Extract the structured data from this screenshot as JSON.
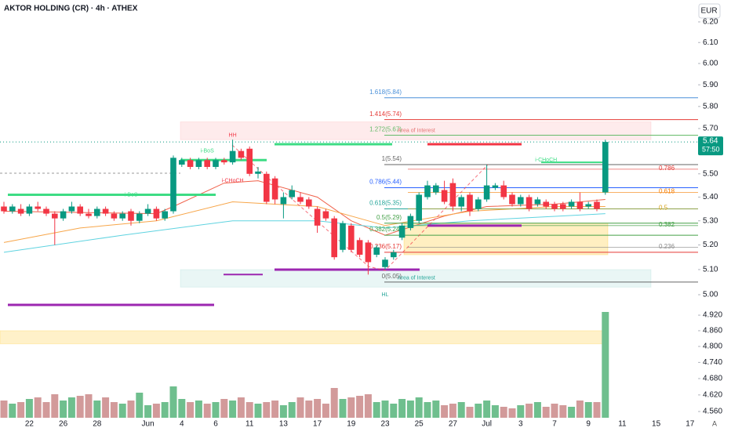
{
  "chart_data": {
    "type": "candlestick",
    "title": "AKTOR HOLDING (CR) · 4h · ATHEX",
    "currency": "EUR",
    "log_scale": true,
    "ylim": [
      4.518,
      6.308
    ],
    "yticks": [
      {
        "value": 6.2,
        "label": "6.20"
      },
      {
        "value": 6.1,
        "label": "6.10"
      },
      {
        "value": 6.0,
        "label": "6.00"
      },
      {
        "value": 5.9,
        "label": "5.90"
      },
      {
        "value": 5.8,
        "label": "5.80"
      },
      {
        "value": 5.7,
        "label": "5.70"
      },
      {
        "value": 5.5,
        "label": "5.50"
      },
      {
        "value": 5.4,
        "label": "5.40"
      },
      {
        "value": 5.3,
        "label": "5.30"
      },
      {
        "value": 5.2,
        "label": "5.20"
      },
      {
        "value": 5.1,
        "label": "5.10"
      },
      {
        "value": 5.0,
        "label": "5.00"
      },
      {
        "value": 4.92,
        "label": "4.920"
      },
      {
        "value": 4.86,
        "label": "4.860"
      },
      {
        "value": 4.8,
        "label": "4.800"
      },
      {
        "value": 4.74,
        "label": "4.740"
      },
      {
        "value": 4.68,
        "label": "4.680"
      },
      {
        "value": 4.62,
        "label": "4.620"
      },
      {
        "value": 4.56,
        "label": "4.560"
      }
    ],
    "last_price": {
      "value": 5.64,
      "label": "5.64"
    },
    "countdown": "57:50",
    "auto_scale_label": "A",
    "categories": [
      null,
      null,
      null,
      "22",
      null,
      null,
      null,
      "26",
      null,
      null,
      null,
      "28",
      null,
      null,
      null,
      null,
      null,
      "Jun",
      null,
      null,
      null,
      "4",
      null,
      null,
      null,
      "6",
      null,
      null,
      null,
      "11",
      null,
      null,
      null,
      "13",
      null,
      null,
      null,
      "17",
      null,
      null,
      null,
      "19",
      null,
      null,
      null,
      "23",
      null,
      null,
      null,
      "25",
      null,
      null,
      null,
      "27",
      null,
      null,
      null,
      "Jul",
      null,
      null,
      null,
      "3",
      null,
      null,
      null,
      "7",
      null,
      null,
      null,
      "9",
      null,
      null
    ],
    "future_categories": [
      "11",
      "15",
      "17"
    ],
    "up_color": "#089981",
    "down_color": "#f23645",
    "open": [
      5.36,
      5.34,
      5.35,
      5.33,
      5.36,
      5.35,
      5.33,
      5.31,
      5.34,
      5.36,
      5.33,
      5.32,
      5.35,
      5.33,
      5.31,
      5.34,
      5.3,
      5.33,
      5.35,
      5.31,
      5.34,
      5.54,
      5.56,
      5.53,
      5.56,
      5.53,
      5.56,
      5.55,
      5.6,
      5.61,
      5.5,
      5.5,
      5.48,
      5.37,
      5.4,
      5.4,
      5.39,
      5.35,
      5.34,
      5.31,
      5.18,
      5.28,
      5.22,
      5.21,
      5.16,
      5.11,
      5.15,
      5.23,
      5.27,
      5.3,
      5.4,
      5.42,
      5.43,
      5.46,
      5.36,
      5.41,
      5.35,
      5.39,
      5.44,
      5.45,
      5.41,
      5.37,
      5.4,
      5.37,
      5.38,
      5.37,
      5.37,
      5.36,
      5.38,
      5.36,
      5.38,
      5.42
    ],
    "high": [
      5.38,
      5.37,
      5.37,
      5.37,
      5.38,
      5.36,
      5.34,
      5.35,
      5.38,
      5.37,
      5.35,
      5.36,
      5.36,
      5.34,
      5.34,
      5.35,
      5.34,
      5.37,
      5.36,
      5.35,
      5.58,
      5.57,
      5.57,
      5.57,
      5.57,
      5.57,
      5.57,
      5.65,
      5.61,
      5.62,
      5.53,
      5.51,
      5.49,
      5.42,
      5.45,
      5.42,
      5.4,
      5.36,
      5.35,
      5.32,
      5.3,
      5.29,
      5.23,
      5.22,
      5.2,
      5.15,
      5.18,
      5.29,
      5.33,
      5.42,
      5.47,
      5.46,
      5.47,
      5.48,
      5.41,
      5.42,
      5.4,
      5.54,
      5.46,
      5.47,
      5.42,
      5.41,
      5.41,
      5.4,
      5.39,
      5.38,
      5.38,
      5.39,
      5.42,
      5.38,
      5.39,
      5.65
    ],
    "low": [
      5.33,
      5.33,
      5.32,
      5.32,
      5.34,
      5.32,
      5.2,
      5.3,
      5.33,
      5.32,
      5.31,
      5.31,
      5.32,
      5.3,
      5.3,
      5.28,
      5.29,
      5.32,
      5.3,
      5.3,
      5.33,
      5.53,
      5.52,
      5.52,
      5.52,
      5.52,
      5.54,
      5.54,
      5.56,
      5.49,
      5.48,
      5.37,
      5.37,
      5.31,
      5.39,
      5.37,
      5.35,
      5.25,
      5.3,
      5.14,
      5.17,
      5.17,
      5.15,
      5.08,
      5.15,
      5.1,
      5.14,
      5.22,
      5.26,
      5.29,
      5.39,
      5.41,
      5.37,
      5.34,
      5.34,
      5.32,
      5.34,
      5.38,
      5.43,
      5.39,
      5.36,
      5.36,
      5.34,
      5.36,
      5.35,
      5.34,
      5.34,
      5.35,
      5.34,
      5.35,
      5.34,
      5.41
    ],
    "close": [
      5.34,
      5.36,
      5.33,
      5.36,
      5.35,
      5.33,
      5.31,
      5.34,
      5.36,
      5.33,
      5.32,
      5.35,
      5.33,
      5.31,
      5.33,
      5.3,
      5.33,
      5.35,
      5.31,
      5.34,
      5.57,
      5.56,
      5.53,
      5.56,
      5.53,
      5.56,
      5.55,
      5.6,
      5.57,
      5.5,
      5.51,
      5.38,
      5.39,
      5.4,
      5.43,
      5.38,
      5.36,
      5.28,
      5.31,
      5.15,
      5.29,
      5.18,
      5.16,
      5.13,
      5.19,
      5.14,
      5.17,
      5.28,
      5.32,
      5.41,
      5.45,
      5.45,
      5.38,
      5.36,
      5.4,
      5.34,
      5.39,
      5.45,
      5.45,
      5.4,
      5.37,
      5.4,
      5.35,
      5.39,
      5.36,
      5.35,
      5.35,
      5.38,
      5.35,
      5.37,
      5.35,
      5.64
    ],
    "volume": [
      22,
      18,
      20,
      24,
      26,
      20,
      30,
      22,
      26,
      28,
      30,
      22,
      26,
      20,
      18,
      22,
      32,
      16,
      18,
      20,
      40,
      24,
      20,
      22,
      18,
      20,
      24,
      22,
      26,
      20,
      18,
      20,
      22,
      16,
      20,
      26,
      22,
      24,
      18,
      38,
      24,
      26,
      28,
      30,
      20,
      22,
      18,
      24,
      22,
      26,
      20,
      22,
      16,
      18,
      20,
      14,
      18,
      22,
      16,
      14,
      12,
      16,
      18,
      20,
      14,
      18,
      16,
      14,
      22,
      20,
      20,
      135
    ],
    "volume_lim": [
      0,
      150
    ],
    "moving_averages": [
      {
        "color": "#f0614a",
        "x": [
          0,
          18,
          20,
          26,
          30,
          37,
          41,
          45,
          52,
          57,
          65,
          71
        ],
        "values": [
          5.34,
          5.33,
          5.36,
          5.46,
          5.47,
          5.4,
          5.3,
          5.24,
          5.32,
          5.36,
          5.37,
          5.39
        ]
      },
      {
        "color": "#f7a64a",
        "x": [
          0,
          9,
          18,
          27,
          37,
          45,
          55,
          65,
          71
        ],
        "values": [
          5.21,
          5.27,
          5.3,
          5.38,
          5.36,
          5.28,
          5.34,
          5.36,
          5.36
        ]
      },
      {
        "color": "#5fd3e0",
        "x": [
          0,
          14,
          27,
          37,
          45,
          55,
          71
        ],
        "values": [
          5.17,
          5.24,
          5.3,
          5.3,
          5.27,
          5.3,
          5.33
        ]
      }
    ],
    "zones": [
      {
        "top": 5.73,
        "bottom": 5.65,
        "color": "rgba(242,54,69,0.10)",
        "label": "Area of Interest",
        "label_color": "#e57373"
      },
      {
        "top": 5.1,
        "bottom": 5.03,
        "color": "rgba(38,166,154,0.10)",
        "label": "Area of Interest",
        "label_color": "#26a69a"
      },
      {
        "top": 5.29,
        "bottom": 5.16,
        "color": "rgba(255,193,7,0.25)"
      },
      {
        "top": 4.86,
        "bottom": 4.81,
        "color": "rgba(255,193,7,0.22)"
      }
    ],
    "levels": [
      {
        "price": 5.41,
        "color": "#3ddc84"
      },
      {
        "price": 5.56,
        "color": "#3ddc84"
      },
      {
        "price": 5.63,
        "color": "#3ddc84"
      },
      {
        "price": 5.63,
        "color": "#f23645"
      },
      {
        "price": 5.55,
        "color": "#3ddc84"
      },
      {
        "price": 5.1,
        "color": "#9c27b0"
      },
      {
        "price": 5.08,
        "color": "#9c27b0"
      },
      {
        "price": 4.96,
        "color": "#9c27b0"
      },
      {
        "price": 5.28,
        "color": "#9c27b0"
      }
    ],
    "fib_levels": [
      {
        "label": "1.618(5.84)",
        "value": 5.84,
        "color": "#4a90d9"
      },
      {
        "label": "1.414(5.74)",
        "value": 5.74,
        "color": "#e53935"
      },
      {
        "label": "1.272(5.67)",
        "value": 5.67,
        "color": "#66bb6a"
      },
      {
        "label": "1(5.54)",
        "value": 5.54,
        "color": "#666666"
      },
      {
        "label": "0.786(5.44)",
        "value": 5.44,
        "color": "#2962ff"
      },
      {
        "label": "0.618(5.35)",
        "value": 5.35,
        "color": "#26a69a"
      },
      {
        "label": "0.5(5.29)",
        "value": 5.29,
        "color": "#43a047"
      },
      {
        "label": "0.382(5.24)",
        "value": 5.24,
        "color": "#43a047"
      },
      {
        "label": "0.236(5.17)",
        "value": 5.17,
        "color": "#e53935"
      },
      {
        "label": "0(5.05)",
        "value": 5.05,
        "color": "#666666"
      }
    ],
    "fib_levels_2": [
      {
        "label": "0.786",
        "value": 5.52,
        "color": "#e53935"
      },
      {
        "label": "0.618",
        "value": 5.42,
        "color": "#f57c00"
      },
      {
        "label": "0.5",
        "value": 5.35,
        "color": "#d4a017"
      },
      {
        "label": "0.382",
        "value": 5.28,
        "color": "#43a047"
      },
      {
        "label": "0.236",
        "value": 5.19,
        "color": "#888888"
      }
    ],
    "structure_labels": [
      {
        "text": "HH",
        "index": 27,
        "price": 5.67,
        "color": "#f23645"
      },
      {
        "text": "HL",
        "index": 45,
        "price": 5.0,
        "color": "#26a69a"
      },
      {
        "text": "i-BoS",
        "index": 24,
        "price": 5.6,
        "color": "#3ddc84"
      },
      {
        "text": "i-CHoCH",
        "index": 27,
        "price": 5.47,
        "color": "#f23645"
      },
      {
        "text": "i-BoS",
        "index": 15,
        "price": 5.41,
        "color": "#3ddc84"
      },
      {
        "text": "i-CHoCH",
        "index": 64,
        "price": 5.56,
        "color": "#3ddc84"
      }
    ]
  }
}
